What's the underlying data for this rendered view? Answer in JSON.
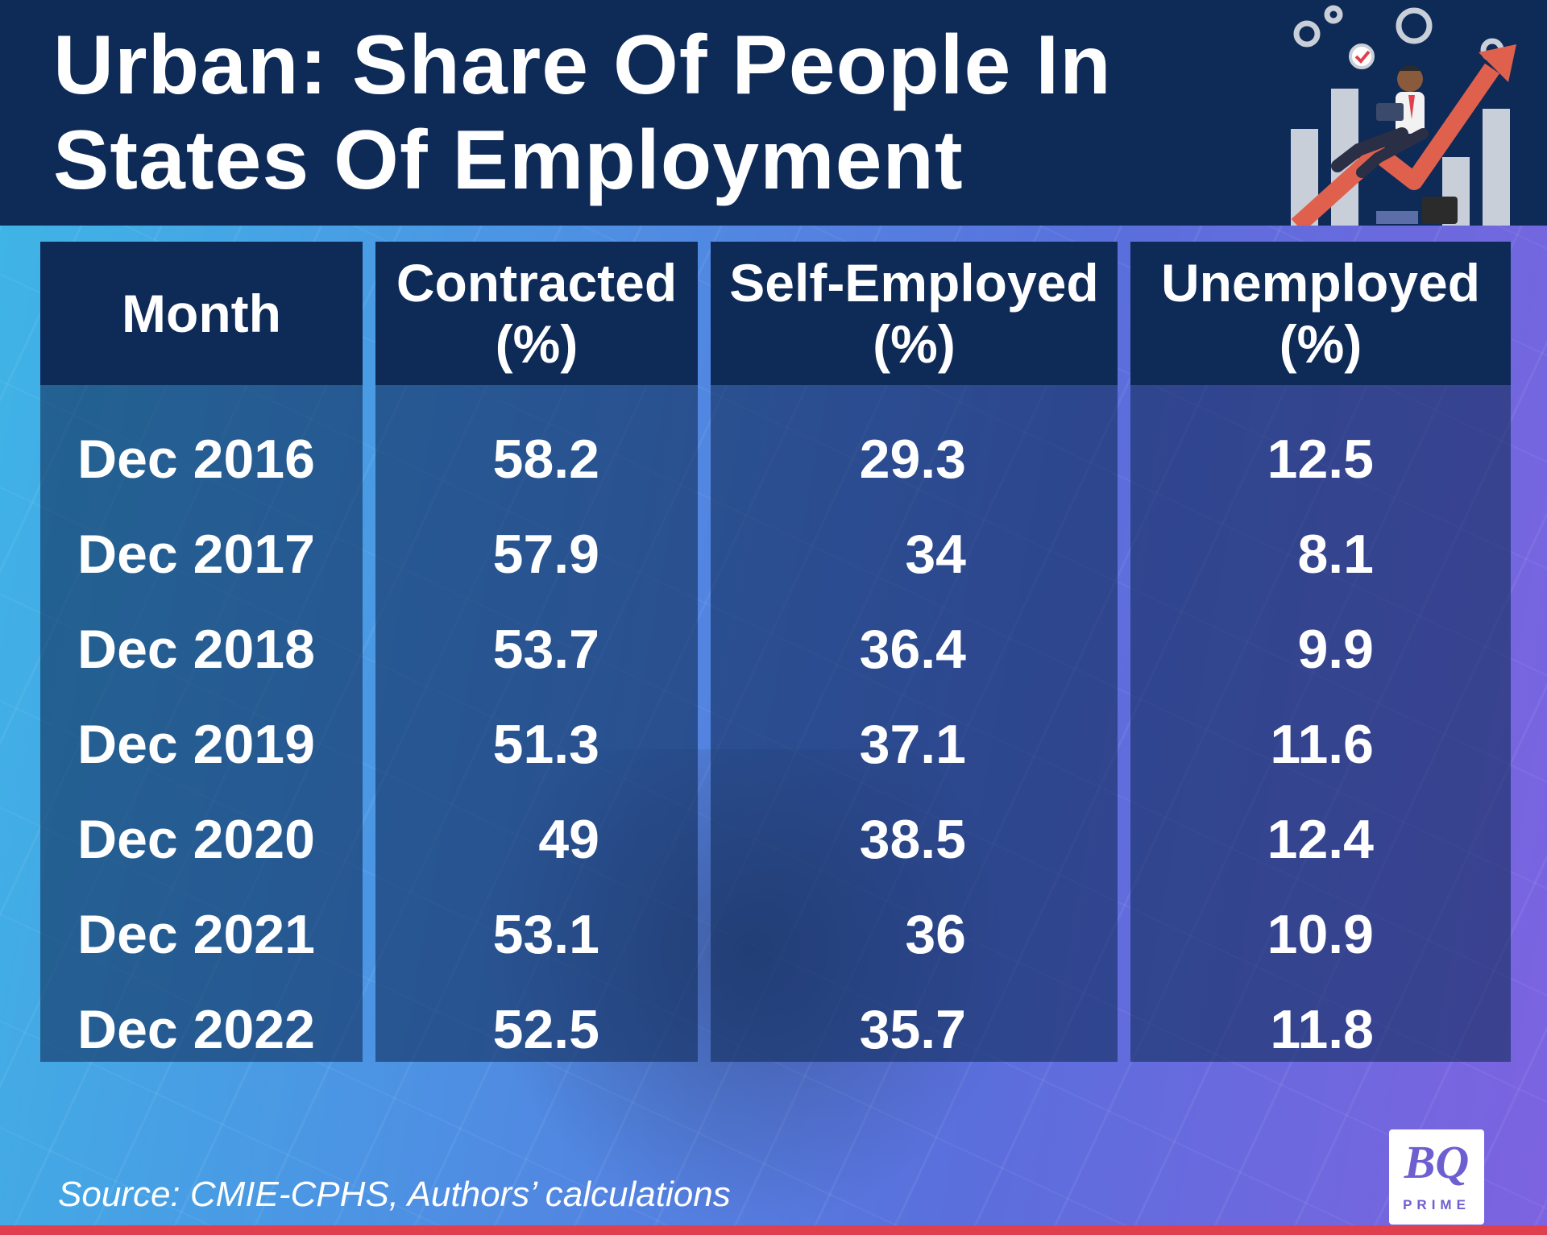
{
  "header": {
    "title_line1": "Urban: Share Of People In",
    "title_line2": "States Of Employment"
  },
  "chart_data": {
    "type": "table",
    "title": "Urban: Share Of People In States Of Employment",
    "columns": [
      "Month",
      "Contracted (%)",
      "Self-Employed (%)",
      "Unemployed (%)"
    ],
    "column_lines": [
      [
        "Month"
      ],
      [
        "Contracted",
        "(%)"
      ],
      [
        "Self-Employed",
        "(%)"
      ],
      [
        "Unemployed",
        "(%)"
      ]
    ],
    "rows": [
      [
        "Dec 2016",
        "58.2",
        "29.3",
        "12.5"
      ],
      [
        "Dec 2017",
        "57.9",
        "34",
        "8.1"
      ],
      [
        "Dec 2018",
        "53.7",
        "36.4",
        "9.9"
      ],
      [
        "Dec 2019",
        "51.3",
        "37.1",
        "11.6"
      ],
      [
        "Dec 2020",
        "49",
        "38.5",
        "12.4"
      ],
      [
        "Dec 2021",
        "53.1",
        "36",
        "10.9"
      ],
      [
        "Dec 2022",
        "52.5",
        "35.7",
        "11.8"
      ]
    ]
  },
  "footer": {
    "source": "Source: CMIE-CPHS, Authors’ calculations",
    "logo_text": "BQ",
    "logo_subtext": "PRIME"
  },
  "colors": {
    "header_bg": "#0e2a57",
    "accent_red": "#e0404e",
    "logo_purple": "#6e5fd0"
  }
}
